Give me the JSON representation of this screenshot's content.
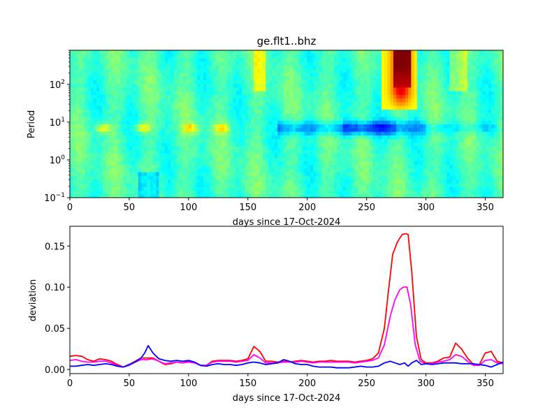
{
  "chart_data": [
    {
      "type": "heatmap",
      "title": "ge.flt1..bhz",
      "xlabel": "days since 17-Oct-2024",
      "ylabel": "Period",
      "xlim": [
        0,
        365
      ],
      "ylim": [
        0.1,
        800
      ],
      "yscale": "log",
      "colormap": "jet",
      "x_ticks": [
        0,
        50,
        100,
        150,
        200,
        250,
        300,
        350
      ],
      "y_ticks": [
        {
          "value": 0.1,
          "base": "10",
          "exp": "−1"
        },
        {
          "value": 1,
          "base": "10",
          "exp": "0"
        },
        {
          "value": 10,
          "base": "10",
          "exp": "1"
        },
        {
          "value": 100,
          "base": "10",
          "exp": "2"
        }
      ],
      "features": [
        {
          "x": [
            263,
            293
          ],
          "period": [
            20,
            800
          ],
          "level": 0.82,
          "peak": [
            272,
            287,
            80,
            800,
            1.0
          ]
        },
        {
          "x": [
            175,
            300
          ],
          "period": [
            3,
            15
          ],
          "level": 0.25
        },
        {
          "x": [
            20,
            140
          ],
          "period": [
            4,
            15
          ],
          "level": 0.62
        },
        {
          "x": [
            60,
            75
          ],
          "period": [
            0.1,
            0.4
          ],
          "level": 0.3
        }
      ]
    },
    {
      "type": "line",
      "xlabel": "days since 17-Oct-2024",
      "ylabel": "deviation",
      "xlim": [
        0,
        365
      ],
      "ylim": [
        -0.005,
        0.174
      ],
      "x_ticks": [
        0,
        50,
        100,
        150,
        200,
        250,
        300,
        350
      ],
      "y_ticks": [
        "0.00",
        "0.05",
        "0.10",
        "0.15"
      ],
      "series": [
        {
          "color": "#ff0000",
          "points": [
            [
              0,
              0.016
            ],
            [
              5,
              0.017
            ],
            [
              10,
              0.016
            ],
            [
              15,
              0.012
            ],
            [
              20,
              0.01
            ],
            [
              25,
              0.013
            ],
            [
              30,
              0.012
            ],
            [
              35,
              0.01
            ],
            [
              40,
              0.006
            ],
            [
              45,
              0.003
            ],
            [
              50,
              0.006
            ],
            [
              55,
              0.01
            ],
            [
              60,
              0.014
            ],
            [
              65,
              0.014
            ],
            [
              70,
              0.014
            ],
            [
              75,
              0.01
            ],
            [
              80,
              0.006
            ],
            [
              85,
              0.007
            ],
            [
              90,
              0.009
            ],
            [
              95,
              0.008
            ],
            [
              100,
              0.01
            ],
            [
              105,
              0.009
            ],
            [
              110,
              0.005
            ],
            [
              115,
              0.005
            ],
            [
              120,
              0.01
            ],
            [
              125,
              0.011
            ],
            [
              130,
              0.011
            ],
            [
              135,
              0.011
            ],
            [
              140,
              0.01
            ],
            [
              145,
              0.011
            ],
            [
              150,
              0.013
            ],
            [
              155,
              0.028
            ],
            [
              160,
              0.022
            ],
            [
              165,
              0.01
            ],
            [
              170,
              0.01
            ],
            [
              175,
              0.009
            ],
            [
              180,
              0.01
            ],
            [
              185,
              0.009
            ],
            [
              190,
              0.01
            ],
            [
              195,
              0.011
            ],
            [
              200,
              0.01
            ],
            [
              205,
              0.009
            ],
            [
              210,
              0.01
            ],
            [
              215,
              0.01
            ],
            [
              220,
              0.011
            ],
            [
              225,
              0.01
            ],
            [
              230,
              0.01
            ],
            [
              235,
              0.01
            ],
            [
              240,
              0.009
            ],
            [
              245,
              0.01
            ],
            [
              250,
              0.011
            ],
            [
              255,
              0.013
            ],
            [
              260,
              0.02
            ],
            [
              265,
              0.05
            ],
            [
              268,
              0.09
            ],
            [
              272,
              0.14
            ],
            [
              276,
              0.155
            ],
            [
              280,
              0.164
            ],
            [
              283,
              0.165
            ],
            [
              285,
              0.164
            ],
            [
              288,
              0.12
            ],
            [
              292,
              0.04
            ],
            [
              296,
              0.012
            ],
            [
              300,
              0.008
            ],
            [
              305,
              0.008
            ],
            [
              310,
              0.01
            ],
            [
              315,
              0.014
            ],
            [
              320,
              0.015
            ],
            [
              325,
              0.032
            ],
            [
              330,
              0.025
            ],
            [
              335,
              0.014
            ],
            [
              340,
              0.006
            ],
            [
              345,
              0.006
            ],
            [
              350,
              0.02
            ],
            [
              355,
              0.022
            ],
            [
              360,
              0.01
            ],
            [
              365,
              0.008
            ]
          ]
        },
        {
          "color": "#ff00ff",
          "points": [
            [
              0,
              0.011
            ],
            [
              5,
              0.012
            ],
            [
              10,
              0.01
            ],
            [
              15,
              0.009
            ],
            [
              20,
              0.009
            ],
            [
              25,
              0.01
            ],
            [
              30,
              0.01
            ],
            [
              35,
              0.008
            ],
            [
              40,
              0.005
            ],
            [
              45,
              0.003
            ],
            [
              50,
              0.005
            ],
            [
              55,
              0.009
            ],
            [
              60,
              0.012
            ],
            [
              65,
              0.012
            ],
            [
              70,
              0.013
            ],
            [
              75,
              0.01
            ],
            [
              80,
              0.007
            ],
            [
              85,
              0.008
            ],
            [
              90,
              0.009
            ],
            [
              95,
              0.008
            ],
            [
              100,
              0.009
            ],
            [
              105,
              0.008
            ],
            [
              110,
              0.005
            ],
            [
              115,
              0.005
            ],
            [
              120,
              0.009
            ],
            [
              125,
              0.01
            ],
            [
              130,
              0.01
            ],
            [
              135,
              0.01
            ],
            [
              140,
              0.009
            ],
            [
              145,
              0.01
            ],
            [
              150,
              0.011
            ],
            [
              155,
              0.018
            ],
            [
              160,
              0.014
            ],
            [
              165,
              0.008
            ],
            [
              170,
              0.008
            ],
            [
              175,
              0.008
            ],
            [
              180,
              0.009
            ],
            [
              185,
              0.009
            ],
            [
              190,
              0.009
            ],
            [
              195,
              0.01
            ],
            [
              200,
              0.009
            ],
            [
              205,
              0.008
            ],
            [
              210,
              0.009
            ],
            [
              215,
              0.009
            ],
            [
              220,
              0.009
            ],
            [
              225,
              0.009
            ],
            [
              230,
              0.009
            ],
            [
              235,
              0.009
            ],
            [
              240,
              0.008
            ],
            [
              245,
              0.009
            ],
            [
              250,
              0.01
            ],
            [
              255,
              0.011
            ],
            [
              260,
              0.014
            ],
            [
              265,
              0.03
            ],
            [
              270,
              0.065
            ],
            [
              274,
              0.085
            ],
            [
              278,
              0.097
            ],
            [
              281,
              0.1
            ],
            [
              284,
              0.1
            ],
            [
              287,
              0.08
            ],
            [
              291,
              0.03
            ],
            [
              295,
              0.01
            ],
            [
              300,
              0.007
            ],
            [
              305,
              0.007
            ],
            [
              310,
              0.009
            ],
            [
              315,
              0.01
            ],
            [
              320,
              0.012
            ],
            [
              325,
              0.018
            ],
            [
              330,
              0.016
            ],
            [
              335,
              0.01
            ],
            [
              340,
              0.005
            ],
            [
              345,
              0.005
            ],
            [
              350,
              0.011
            ],
            [
              355,
              0.012
            ],
            [
              360,
              0.008
            ],
            [
              365,
              0.007
            ]
          ]
        },
        {
          "color": "#0000ff",
          "points": [
            [
              0,
              0.004
            ],
            [
              5,
              0.004
            ],
            [
              10,
              0.005
            ],
            [
              15,
              0.006
            ],
            [
              20,
              0.005
            ],
            [
              25,
              0.006
            ],
            [
              30,
              0.007
            ],
            [
              35,
              0.006
            ],
            [
              40,
              0.004
            ],
            [
              45,
              0.003
            ],
            [
              50,
              0.006
            ],
            [
              55,
              0.009
            ],
            [
              60,
              0.014
            ],
            [
              63,
              0.02
            ],
            [
              66,
              0.029
            ],
            [
              70,
              0.02
            ],
            [
              75,
              0.013
            ],
            [
              80,
              0.011
            ],
            [
              85,
              0.01
            ],
            [
              90,
              0.011
            ],
            [
              95,
              0.01
            ],
            [
              100,
              0.011
            ],
            [
              105,
              0.009
            ],
            [
              110,
              0.005
            ],
            [
              115,
              0.004
            ],
            [
              120,
              0.006
            ],
            [
              125,
              0.007
            ],
            [
              130,
              0.006
            ],
            [
              135,
              0.006
            ],
            [
              140,
              0.005
            ],
            [
              145,
              0.006
            ],
            [
              150,
              0.008
            ],
            [
              155,
              0.009
            ],
            [
              160,
              0.008
            ],
            [
              165,
              0.006
            ],
            [
              170,
              0.007
            ],
            [
              175,
              0.008
            ],
            [
              180,
              0.012
            ],
            [
              185,
              0.01
            ],
            [
              190,
              0.007
            ],
            [
              195,
              0.006
            ],
            [
              200,
              0.006
            ],
            [
              205,
              0.004
            ],
            [
              210,
              0.003
            ],
            [
              215,
              0.003
            ],
            [
              220,
              0.003
            ],
            [
              225,
              0.002
            ],
            [
              230,
              0.002
            ],
            [
              235,
              0.002
            ],
            [
              240,
              0.003
            ],
            [
              245,
              0.004
            ],
            [
              250,
              0.003
            ],
            [
              255,
              0.003
            ],
            [
              260,
              0.004
            ],
            [
              265,
              0.008
            ],
            [
              270,
              0.01
            ],
            [
              274,
              0.008
            ],
            [
              278,
              0.006
            ],
            [
              282,
              0.008
            ],
            [
              285,
              0.004
            ],
            [
              288,
              0.008
            ],
            [
              292,
              0.011
            ],
            [
              296,
              0.006
            ],
            [
              300,
              0.007
            ],
            [
              305,
              0.006
            ],
            [
              310,
              0.007
            ],
            [
              315,
              0.008
            ],
            [
              320,
              0.008
            ],
            [
              325,
              0.008
            ],
            [
              330,
              0.007
            ],
            [
              335,
              0.007
            ],
            [
              340,
              0.007
            ],
            [
              345,
              0.006
            ],
            [
              350,
              0.005
            ],
            [
              355,
              0.003
            ],
            [
              360,
              0.006
            ],
            [
              365,
              0.009
            ]
          ]
        }
      ]
    }
  ]
}
